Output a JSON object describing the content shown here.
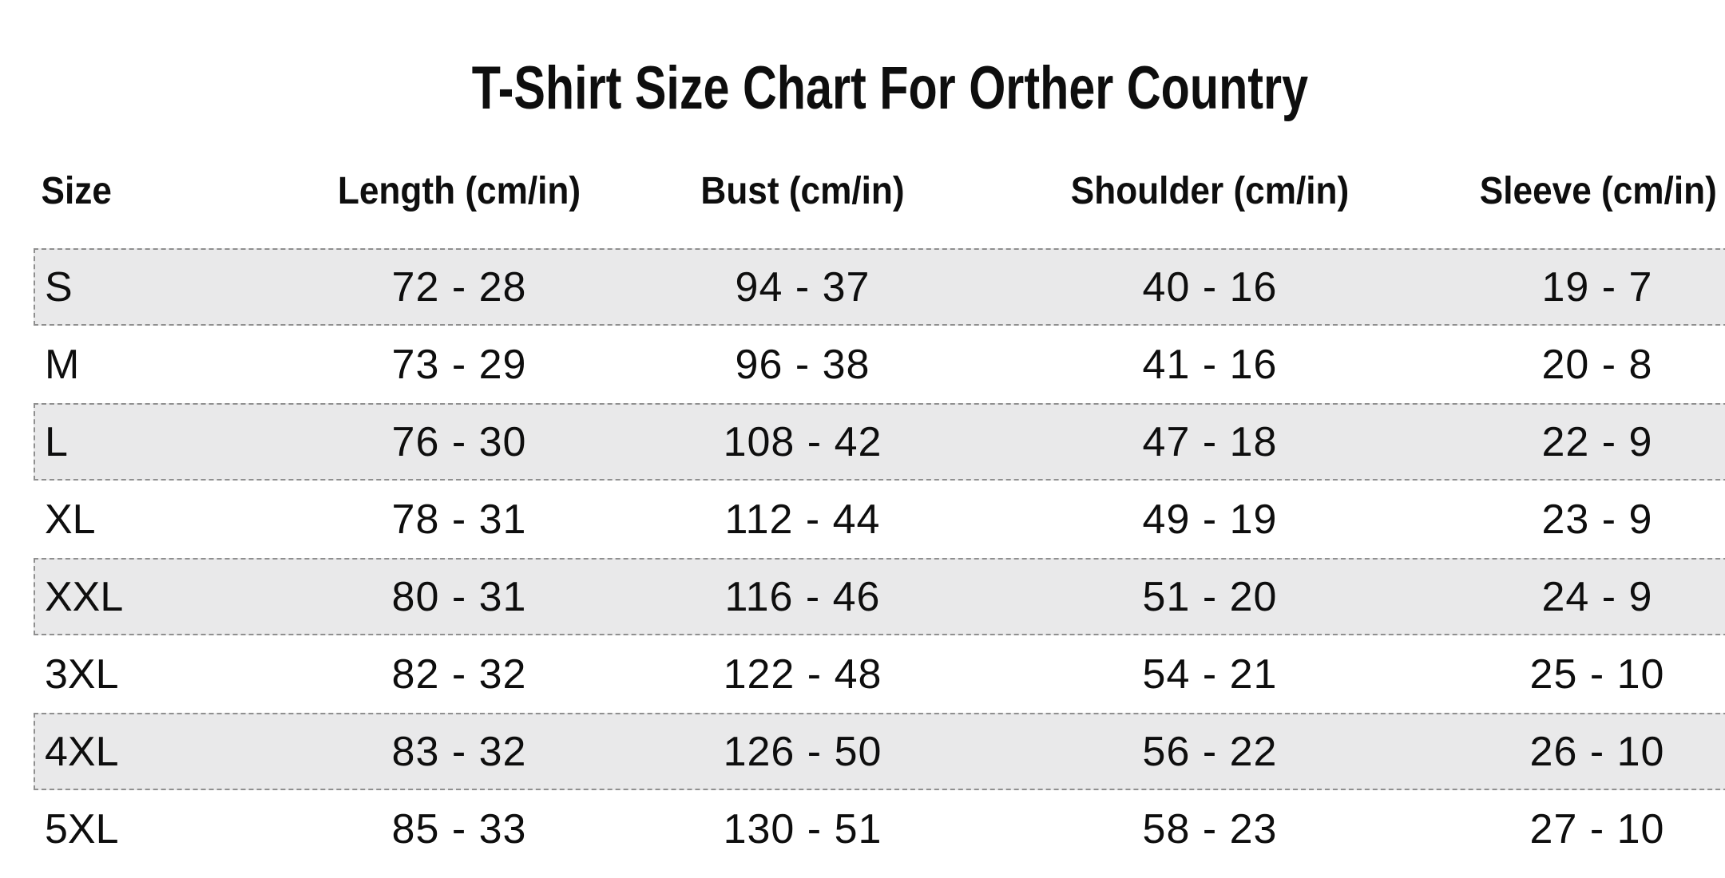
{
  "title": "T-Shirt Size Chart For Orther Country",
  "table": {
    "columns": [
      "Size",
      "Length (cm/in)",
      "Bust (cm/in)",
      "Shoulder (cm/in)",
      "Sleeve (cm/in)"
    ],
    "rows": [
      {
        "size": "S",
        "length": "72 - 28",
        "bust": "94  - 37",
        "shoulder": "40 - 16",
        "sleeve": "19  - 7"
      },
      {
        "size": "M",
        "length": "73 - 29",
        "bust": "96  - 38",
        "shoulder": "41  - 16",
        "sleeve": "20 - 8"
      },
      {
        "size": "L",
        "length": "76 - 30",
        "bust": "108 - 42",
        "shoulder": "47 - 18",
        "sleeve": "22 - 9"
      },
      {
        "size": "XL",
        "length": "78 - 31",
        "bust": "112  - 44",
        "shoulder": "49 - 19",
        "sleeve": "23 - 9"
      },
      {
        "size": "XXL",
        "length": "80 - 31",
        "bust": "116  - 46",
        "shoulder": "51  - 20",
        "sleeve": "24 - 9"
      },
      {
        "size": "3XL",
        "length": "82 - 32",
        "bust": "122 - 48",
        "shoulder": "54 - 21",
        "sleeve": "25 - 10"
      },
      {
        "size": "4XL",
        "length": "83 - 32",
        "bust": "126 - 50",
        "shoulder": "56 - 22",
        "sleeve": "26 - 10"
      },
      {
        "size": "5XL",
        "length": "85 - 33",
        "bust": "130 - 51",
        "shoulder": "58 - 23",
        "sleeve": "27 - 10"
      }
    ]
  },
  "chart_data": {
    "type": "table",
    "title": "T-Shirt Size Chart For Orther Country",
    "columns": [
      "Size",
      "Length (cm/in)",
      "Bust (cm/in)",
      "Shoulder (cm/in)",
      "Sleeve (cm/in)"
    ],
    "rows": [
      [
        "S",
        "72 - 28",
        "94 - 37",
        "40 - 16",
        "19 - 7"
      ],
      [
        "M",
        "73 - 29",
        "96 - 38",
        "41 - 16",
        "20 - 8"
      ],
      [
        "L",
        "76 - 30",
        "108 - 42",
        "47 - 18",
        "22 - 9"
      ],
      [
        "XL",
        "78 - 31",
        "112 - 44",
        "49 - 19",
        "23 - 9"
      ],
      [
        "XXL",
        "80 - 31",
        "116 - 46",
        "51 - 20",
        "24 - 9"
      ],
      [
        "3XL",
        "82 - 32",
        "122 - 48",
        "54 - 21",
        "25 - 10"
      ],
      [
        "4XL",
        "83 - 32",
        "126 - 50",
        "56 - 22",
        "26 - 10"
      ],
      [
        "5XL",
        "85 - 33",
        "130 - 51",
        "58 - 23",
        "27 - 10"
      ]
    ],
    "layout": {
      "striped_rows": [
        "S",
        "L",
        "XXL",
        "4XL"
      ],
      "stripe_style": "light-gray band with dashed border"
    }
  },
  "colors": {
    "background": "#ffffff",
    "text": "#0e0e0e",
    "row_band_bg": "#e9e9ea",
    "row_band_border": "#8f8f8f"
  }
}
